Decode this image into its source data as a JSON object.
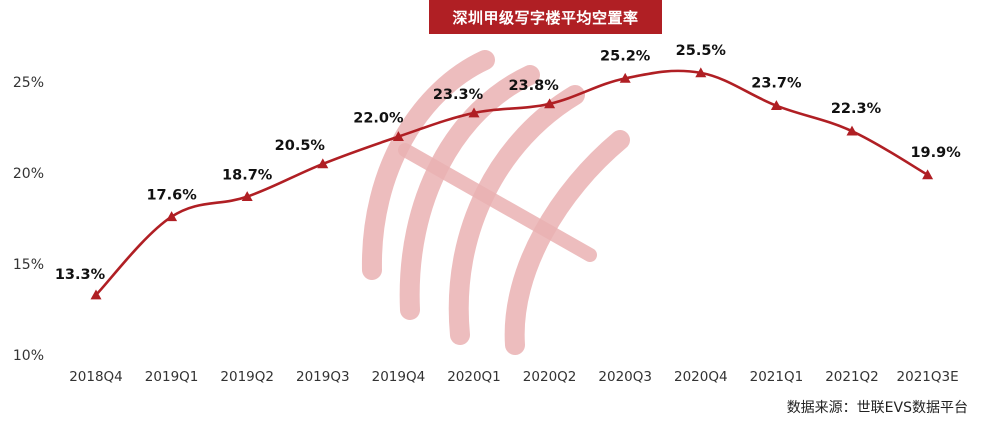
{
  "colors": {
    "series": "#b01f24",
    "title_bg": "#b01f24",
    "watermark": "#eab2b3",
    "axis_text": "#333333",
    "label_text": "#111111"
  },
  "source_text": "数据来源：世联EVS数据平台",
  "chart_data": {
    "type": "line",
    "title": "深圳甲级写字楼平均空置率",
    "xlabel": "",
    "ylabel": "",
    "ylim": [
      10,
      26.5
    ],
    "yticks": [
      10,
      15,
      20,
      25
    ],
    "ytick_labels": [
      "10%",
      "15%",
      "20%",
      "25%"
    ],
    "grid": false,
    "legend": "none",
    "marker": "triangle",
    "categories": [
      "2018Q4",
      "2019Q1",
      "2019Q2",
      "2019Q3",
      "2019Q4",
      "2020Q1",
      "2020Q2",
      "2020Q3",
      "2020Q4",
      "2021Q1",
      "2021Q2",
      "2021Q3E"
    ],
    "series": [
      {
        "values": [
          13.3,
          17.6,
          18.7,
          20.5,
          22.0,
          23.3,
          23.8,
          25.2,
          25.5,
          23.7,
          22.3,
          19.9
        ],
        "labels": [
          "13.3%",
          "17.6%",
          "18.7%",
          "20.5%",
          "22.0%",
          "23.3%",
          "23.8%",
          "25.2%",
          "25.5%",
          "23.7%",
          "22.3%",
          "19.9%"
        ]
      }
    ]
  }
}
